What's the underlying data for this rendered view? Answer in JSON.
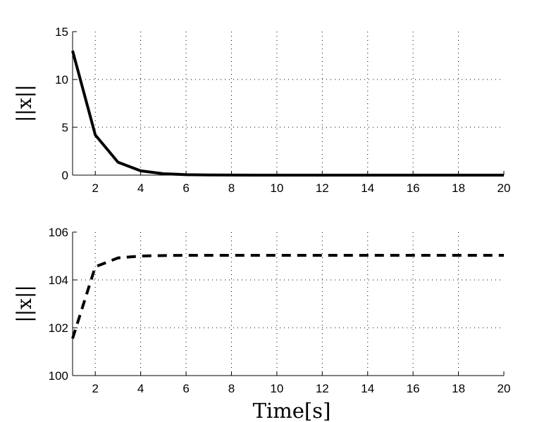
{
  "chart_data": [
    {
      "type": "line",
      "xlabel": "",
      "ylabel": "||x||",
      "xlim": [
        1,
        20
      ],
      "ylim": [
        0,
        15
      ],
      "xticks": [
        2,
        4,
        6,
        8,
        10,
        12,
        14,
        16,
        18,
        20
      ],
      "yticks": [
        0,
        5,
        10,
        15
      ],
      "grid": true,
      "line_style": "solid",
      "line_color": "#000000",
      "series": [
        {
          "x": [
            1,
            2,
            3,
            4,
            5,
            6,
            7,
            8,
            9,
            10,
            11,
            12,
            13,
            14,
            15,
            16,
            17,
            18,
            19,
            20
          ],
          "values": [
            13.0,
            4.2,
            1.35,
            0.45,
            0.15,
            0.05,
            0.02,
            0.01,
            0,
            0,
            0,
            0,
            0,
            0,
            0,
            0,
            0,
            0,
            0,
            0
          ]
        }
      ]
    },
    {
      "type": "line",
      "xlabel": "Time[s]",
      "ylabel": "||x||",
      "xlim": [
        1,
        20
      ],
      "ylim": [
        100,
        106
      ],
      "xticks": [
        2,
        4,
        6,
        8,
        10,
        12,
        14,
        16,
        18,
        20
      ],
      "yticks": [
        100,
        102,
        104,
        106
      ],
      "grid": true,
      "line_style": "dashed",
      "line_color": "#000000",
      "series": [
        {
          "x": [
            1,
            2,
            3,
            4,
            5,
            6,
            7,
            8,
            9,
            10,
            11,
            12,
            13,
            14,
            15,
            16,
            17,
            18,
            19,
            20
          ],
          "values": [
            101.55,
            104.55,
            104.92,
            105.0,
            105.02,
            105.03,
            105.03,
            105.03,
            105.03,
            105.03,
            105.03,
            105.03,
            105.03,
            105.03,
            105.03,
            105.03,
            105.03,
            105.03,
            105.03,
            105.03
          ]
        }
      ]
    }
  ]
}
